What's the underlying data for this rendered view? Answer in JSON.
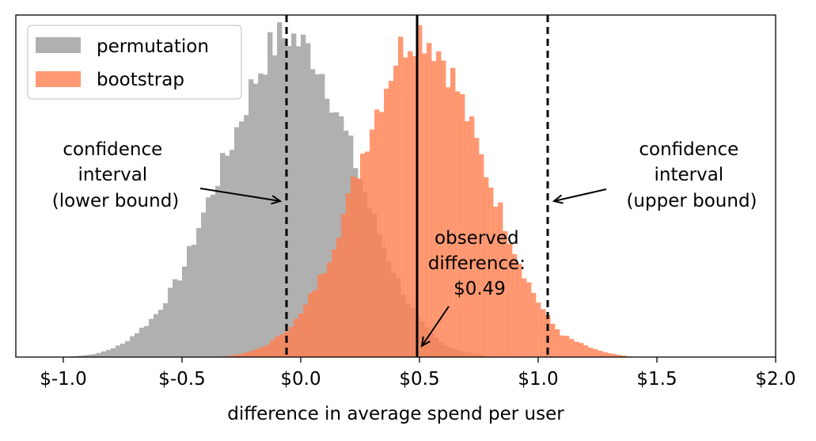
{
  "chart_data": {
    "type": "histogram",
    "xlabel": "difference in average spend per user",
    "ylabel": "",
    "xlim": [
      -1.2,
      2.0
    ],
    "x_ticks": [
      -1.0,
      -0.5,
      0.0,
      0.5,
      1.0,
      1.5,
      2.0
    ],
    "x_tick_labels": [
      "$-1.0",
      "$-0.5",
      "$0.0",
      "$0.5",
      "$1.0",
      "$1.5",
      "$2.0"
    ],
    "y_ticks_visible": false,
    "grid": false,
    "legend_position": "top-left",
    "legend": [
      "permutation",
      "bootstrap"
    ],
    "series": [
      {
        "name": "permutation",
        "color": "#b0b0b0",
        "opacity": 1.0,
        "bins": {
          "x": [
            -1.0,
            -0.95,
            -0.9,
            -0.85,
            -0.8,
            -0.75,
            -0.7,
            -0.65,
            -0.6,
            -0.55,
            -0.5,
            -0.45,
            -0.4,
            -0.35,
            -0.3,
            -0.25,
            -0.2,
            -0.15,
            -0.1,
            -0.05,
            0.0,
            0.05,
            0.1,
            0.15,
            0.2,
            0.25,
            0.3,
            0.35,
            0.4,
            0.45,
            0.5,
            0.55,
            0.6,
            0.65,
            0.7,
            0.75,
            0.8
          ],
          "relative_density": [
            0.0,
            0.003,
            0.006,
            0.012,
            0.025,
            0.04,
            0.07,
            0.1,
            0.14,
            0.2,
            0.26,
            0.36,
            0.46,
            0.55,
            0.64,
            0.74,
            0.84,
            0.92,
            0.97,
            0.99,
            0.96,
            0.93,
            0.86,
            0.76,
            0.66,
            0.55,
            0.44,
            0.34,
            0.25,
            0.17,
            0.11,
            0.07,
            0.04,
            0.025,
            0.015,
            0.008,
            0.0
          ]
        }
      },
      {
        "name": "bootstrap",
        "color": "#ff7f50",
        "opacity": 0.8,
        "bins": {
          "x": [
            -0.35,
            -0.3,
            -0.25,
            -0.2,
            -0.15,
            -0.1,
            -0.05,
            0.0,
            0.05,
            0.1,
            0.15,
            0.2,
            0.25,
            0.3,
            0.35,
            0.4,
            0.45,
            0.5,
            0.55,
            0.6,
            0.65,
            0.7,
            0.75,
            0.8,
            0.85,
            0.9,
            0.95,
            1.0,
            1.05,
            1.1,
            1.15,
            1.2,
            1.25,
            1.3,
            1.35,
            1.4
          ],
          "relative_density": [
            0.0,
            0.004,
            0.01,
            0.02,
            0.035,
            0.06,
            0.09,
            0.13,
            0.2,
            0.27,
            0.37,
            0.48,
            0.6,
            0.72,
            0.82,
            0.92,
            0.98,
            1.0,
            0.97,
            0.92,
            0.84,
            0.74,
            0.63,
            0.53,
            0.43,
            0.33,
            0.24,
            0.17,
            0.11,
            0.07,
            0.05,
            0.035,
            0.02,
            0.012,
            0.005,
            0.0
          ]
        }
      }
    ],
    "vertical_lines": [
      {
        "x": -0.06,
        "style": "dashed",
        "color": "#000000"
      },
      {
        "x": 0.49,
        "style": "solid",
        "color": "#000000"
      },
      {
        "x": 1.04,
        "style": "dashed",
        "color": "#000000"
      }
    ],
    "annotations": [
      {
        "lines": [
          "confidence",
          "interval",
          "(lower bound)"
        ],
        "points_to": -0.06,
        "side": "left"
      },
      {
        "lines": [
          "confidence",
          "interval",
          "(upper bound)"
        ],
        "points_to": 1.04,
        "side": "right"
      },
      {
        "lines": [
          "observed",
          "difference:",
          "$0.49"
        ],
        "points_to": 0.49,
        "side": "middle"
      }
    ]
  }
}
